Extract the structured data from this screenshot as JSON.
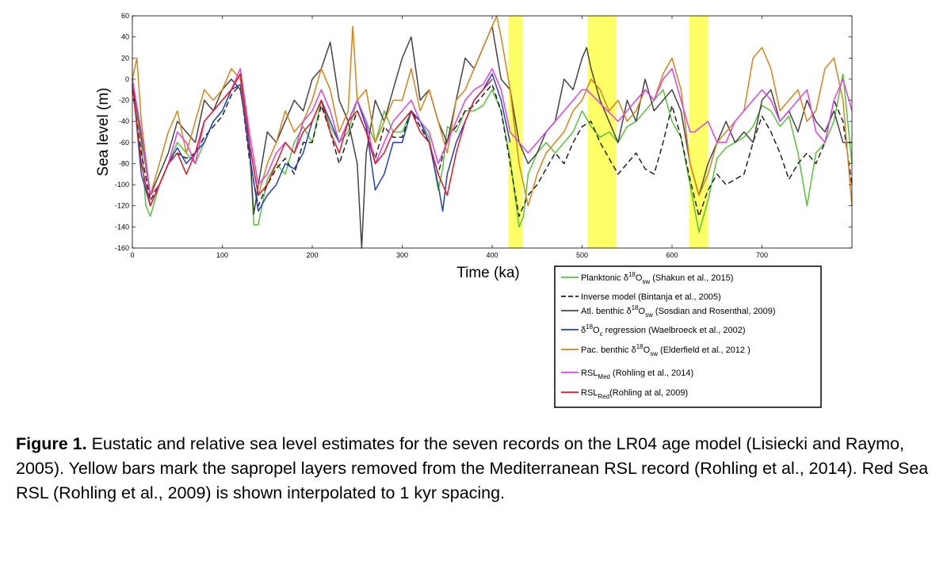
{
  "chart_data": {
    "type": "line",
    "xlabel": "Time (ka)",
    "ylabel": "Sea level (m)",
    "xlim": [
      0,
      800
    ],
    "ylim": [
      -160,
      60
    ],
    "x_ticks": [
      0,
      100,
      200,
      300,
      400,
      500,
      600,
      700
    ],
    "y_ticks": [
      60,
      40,
      20,
      0,
      -20,
      -40,
      -60,
      -80,
      -100,
      -120,
      -140,
      -160
    ],
    "grid": false,
    "legend_position": "below-right",
    "shaded_regions": [
      {
        "x0": 418,
        "x1": 434,
        "color": "#ffff66"
      },
      {
        "x0": 506,
        "x1": 538,
        "color": "#ffff66"
      },
      {
        "x0": 619,
        "x1": 640,
        "color": "#ffff66"
      }
    ],
    "series": [
      {
        "legend_main": "Planktonic δ18Osw",
        "legend_parts": [
          [
            "Planktonic ",
            ""
          ],
          [
            "δ",
            ""
          ],
          [
            "18",
            "sup"
          ],
          [
            "O",
            ""
          ],
          [
            "sw",
            "sub"
          ],
          [
            " (Shakun et al., 2015)",
            ""
          ]
        ],
        "color": "#55c43a",
        "dash": "",
        "x": [
          0,
          10,
          15,
          20,
          30,
          40,
          50,
          60,
          70,
          80,
          90,
          100,
          110,
          120,
          125,
          130,
          135,
          140,
          150,
          160,
          170,
          180,
          190,
          200,
          210,
          220,
          230,
          240,
          250,
          260,
          270,
          280,
          290,
          300,
          310,
          320,
          330,
          340,
          345,
          350,
          360,
          370,
          380,
          390,
          400,
          410,
          420,
          430,
          435,
          440,
          450,
          460,
          470,
          480,
          490,
          500,
          510,
          520,
          530,
          540,
          550,
          560,
          570,
          580,
          590,
          600,
          610,
          620,
          630,
          640,
          650,
          660,
          670,
          680,
          690,
          700,
          710,
          720,
          730,
          740,
          750,
          760,
          770,
          780,
          790,
          800
        ],
        "y": [
          -5,
          -60,
          -120,
          -130,
          -100,
          -80,
          -60,
          -70,
          -80,
          -60,
          -40,
          -30,
          -10,
          -5,
          -20,
          -60,
          -138,
          -138,
          -95,
          -80,
          -90,
          -60,
          -45,
          -60,
          -20,
          -45,
          -60,
          -50,
          -20,
          -40,
          -60,
          -30,
          -50,
          -50,
          -30,
          -40,
          -55,
          -105,
          -85,
          -45,
          -50,
          -30,
          -30,
          -25,
          -10,
          -30,
          -75,
          -140,
          -130,
          -90,
          -70,
          -60,
          -70,
          -60,
          -50,
          -30,
          -45,
          -55,
          -50,
          -60,
          -45,
          -40,
          -30,
          -20,
          -10,
          -40,
          -55,
          -100,
          -145,
          -115,
          -75,
          -65,
          -60,
          -55,
          -45,
          -25,
          -30,
          -45,
          -35,
          -70,
          -120,
          -70,
          -60,
          -40,
          5,
          -80
        ]
      },
      {
        "legend_main": "Inverse model (Bintanja et al., 2005)",
        "legend_parts": [
          [
            "Inverse model (Bintanja et al., 2005)",
            ""
          ]
        ],
        "color": "#222222",
        "dash": "7,4",
        "x": [
          0,
          10,
          20,
          30,
          40,
          50,
          60,
          70,
          80,
          90,
          100,
          110,
          120,
          130,
          140,
          150,
          160,
          170,
          180,
          190,
          200,
          210,
          220,
          230,
          240,
          250,
          260,
          270,
          280,
          290,
          300,
          310,
          320,
          330,
          340,
          350,
          360,
          370,
          380,
          390,
          400,
          410,
          420,
          430,
          440,
          450,
          460,
          470,
          480,
          490,
          500,
          510,
          520,
          530,
          540,
          550,
          560,
          570,
          580,
          590,
          600,
          610,
          620,
          630,
          640,
          650,
          660,
          670,
          680,
          690,
          700,
          710,
          720,
          730,
          740,
          750,
          760,
          770,
          780,
          790,
          800
        ],
        "y": [
          -10,
          -70,
          -115,
          -100,
          -80,
          -70,
          -75,
          -70,
          -55,
          -45,
          -35,
          -15,
          -5,
          -75,
          -120,
          -100,
          -85,
          -75,
          -90,
          -60,
          -60,
          -25,
          -50,
          -80,
          -55,
          -30,
          -50,
          -75,
          -45,
          -55,
          -55,
          -30,
          -45,
          -60,
          -90,
          -55,
          -45,
          -30,
          -25,
          -15,
          -5,
          -30,
          -80,
          -130,
          -110,
          -100,
          -85,
          -70,
          -80,
          -60,
          -45,
          -40,
          -60,
          -75,
          -90,
          -80,
          -70,
          -85,
          -90,
          -60,
          -25,
          -55,
          -95,
          -130,
          -105,
          -90,
          -100,
          -95,
          -90,
          -60,
          -35,
          -50,
          -70,
          -95,
          -80,
          -70,
          -80,
          -60,
          -20,
          -40,
          -100
        ]
      },
      {
        "legend_main": "Atl. benthic δ18Osw (Sosdian and Rosenthal, 2009)",
        "legend_parts": [
          [
            "Atl. benthic ",
            ""
          ],
          [
            "δ",
            ""
          ],
          [
            "18",
            "sup"
          ],
          [
            "O",
            ""
          ],
          [
            "sw",
            "sub"
          ],
          [
            " (Sosdian and Rosenthal, 2009)",
            ""
          ]
        ],
        "color": "#444444",
        "dash": "",
        "x": [
          0,
          10,
          20,
          30,
          40,
          50,
          60,
          70,
          80,
          90,
          100,
          110,
          120,
          130,
          135,
          140,
          150,
          160,
          170,
          180,
          190,
          200,
          210,
          220,
          230,
          240,
          250,
          255,
          260,
          270,
          280,
          290,
          300,
          310,
          320,
          330,
          340,
          350,
          360,
          370,
          380,
          390,
          400,
          410,
          420,
          430,
          440,
          450,
          460,
          470,
          480,
          490,
          500,
          505,
          510,
          520,
          530,
          540,
          550,
          560,
          570,
          580,
          590,
          600,
          610,
          620,
          630,
          640,
          650,
          660,
          670,
          680,
          690,
          700,
          710,
          720,
          730,
          740,
          750,
          760,
          770,
          780,
          790,
          800
        ],
        "y": [
          0,
          -55,
          -110,
          -90,
          -70,
          -40,
          -50,
          -60,
          -20,
          -30,
          -10,
          0,
          -10,
          -60,
          -128,
          -100,
          -50,
          -60,
          -40,
          -20,
          -30,
          0,
          10,
          35,
          -20,
          -40,
          -80,
          -160,
          -70,
          -20,
          -40,
          -10,
          20,
          40,
          -20,
          -10,
          -40,
          -60,
          -20,
          20,
          10,
          30,
          50,
          0,
          -10,
          -60,
          -80,
          -70,
          -50,
          -40,
          0,
          -10,
          20,
          30,
          10,
          -20,
          -40,
          -60,
          -20,
          -40,
          0,
          -30,
          -20,
          -10,
          -30,
          -80,
          -110,
          -80,
          -60,
          -40,
          -60,
          -50,
          -60,
          -20,
          -10,
          -40,
          -30,
          -50,
          -20,
          -40,
          -50,
          -30,
          -60,
          -60
        ]
      },
      {
        "legend_main": "δ18Oc regression (Waelbroeck et al., 2002)",
        "legend_parts": [
          [
            "δ",
            ""
          ],
          [
            "18",
            "sup"
          ],
          [
            "O",
            ""
          ],
          [
            "c",
            "sub"
          ],
          [
            " regression (Waelbroeck et al., 2002)",
            ""
          ]
        ],
        "color": "#1f3fc8",
        "dash": "",
        "x": [
          0,
          10,
          20,
          30,
          40,
          50,
          60,
          70,
          80,
          90,
          100,
          110,
          120,
          130,
          140,
          150,
          160,
          170,
          180,
          190,
          200,
          210,
          220,
          230,
          240,
          250,
          260,
          270,
          280,
          290,
          300,
          310,
          320,
          330,
          340,
          345,
          350,
          360,
          370,
          380,
          390,
          400,
          410,
          420
        ],
        "y": [
          0,
          -90,
          -120,
          -100,
          -80,
          -65,
          -80,
          -70,
          -60,
          -40,
          -30,
          -10,
          -5,
          -70,
          -125,
          -110,
          -100,
          -80,
          -85,
          -70,
          -40,
          -20,
          -40,
          -60,
          -40,
          -20,
          -45,
          -105,
          -90,
          -60,
          -60,
          -30,
          -40,
          -60,
          -100,
          -125,
          -90,
          -60,
          -40,
          -20,
          -10,
          5,
          -20,
          -60
        ]
      },
      {
        "legend_main": "Pac. benthic δ18Osw (Elderfield et al., 2012 )",
        "legend_parts": [
          [
            "Pac. benthic ",
            ""
          ],
          [
            "δ",
            ""
          ],
          [
            "18",
            "sup"
          ],
          [
            "O",
            ""
          ],
          [
            "sw",
            "sub"
          ],
          [
            " (Elderfield et al., 2012 )",
            ""
          ]
        ],
        "color": "#d98314",
        "dash": "",
        "x": [
          0,
          5,
          10,
          20,
          30,
          40,
          50,
          60,
          70,
          80,
          90,
          100,
          110,
          120,
          130,
          140,
          150,
          160,
          170,
          180,
          190,
          200,
          210,
          220,
          230,
          240,
          245,
          250,
          260,
          270,
          280,
          290,
          300,
          310,
          320,
          330,
          340,
          350,
          360,
          370,
          380,
          390,
          400,
          405,
          410,
          420,
          430,
          440,
          450,
          460,
          470,
          480,
          490,
          500,
          510,
          520,
          530,
          540,
          550,
          560,
          570,
          580,
          590,
          600,
          610,
          620,
          630,
          640,
          650,
          660,
          670,
          680,
          690,
          700,
          710,
          720,
          730,
          740,
          750,
          760,
          770,
          780,
          790,
          800
        ],
        "y": [
          0,
          20,
          -40,
          -110,
          -80,
          -50,
          -30,
          -70,
          -40,
          -10,
          -20,
          -10,
          10,
          0,
          -60,
          -110,
          -80,
          -60,
          -30,
          -50,
          -40,
          -20,
          10,
          -10,
          -50,
          -30,
          50,
          -20,
          -10,
          -60,
          -40,
          -20,
          -20,
          10,
          -30,
          -10,
          -40,
          -70,
          -20,
          -10,
          10,
          30,
          50,
          60,
          40,
          -10,
          -80,
          -120,
          -90,
          -70,
          -60,
          -50,
          -30,
          -20,
          0,
          -10,
          -30,
          -20,
          -40,
          -30,
          -10,
          -20,
          5,
          20,
          -10,
          -80,
          -110,
          -90,
          -60,
          -50,
          -40,
          -30,
          20,
          30,
          10,
          -30,
          -20,
          -10,
          -40,
          -30,
          10,
          20,
          -20,
          -120
        ]
      },
      {
        "legend_main": "RSLMed (Rohling et al., 2014)",
        "legend_parts": [
          [
            "RSL",
            ""
          ],
          [
            "Med",
            "sub"
          ],
          [
            " (Rohling et al., 2014)",
            ""
          ]
        ],
        "color": "#e040e8",
        "dash": "",
        "x": [
          0,
          10,
          20,
          30,
          40,
          50,
          60,
          70,
          80,
          90,
          100,
          110,
          120,
          130,
          140,
          150,
          160,
          170,
          180,
          190,
          200,
          210,
          220,
          230,
          240,
          250,
          260,
          270,
          280,
          290,
          300,
          310,
          320,
          330,
          340,
          350,
          360,
          370,
          380,
          390,
          400,
          410,
          420,
          430,
          440,
          450,
          460,
          470,
          480,
          490,
          500,
          505,
          540,
          550,
          560,
          570,
          580,
          590,
          600,
          610,
          620,
          625,
          640,
          650,
          660,
          670,
          680,
          690,
          700,
          710,
          720,
          730,
          740,
          750,
          760,
          770,
          780,
          790,
          800
        ],
        "y": [
          0,
          -50,
          -110,
          -100,
          -80,
          -50,
          -60,
          -80,
          -40,
          -30,
          -20,
          -10,
          10,
          -50,
          -100,
          -90,
          -70,
          -60,
          -70,
          -40,
          -30,
          -10,
          -30,
          -60,
          -40,
          -20,
          -40,
          -80,
          -60,
          -40,
          -30,
          -20,
          -40,
          -50,
          -80,
          -60,
          -40,
          -20,
          -10,
          -5,
          10,
          -10,
          -50,
          -60,
          -70,
          -60,
          -50,
          -40,
          -30,
          -20,
          -10,
          -10,
          -40,
          -30,
          -20,
          -10,
          -20,
          0,
          10,
          -20,
          -50,
          -50,
          -40,
          -60,
          -60,
          -40,
          -30,
          -20,
          -10,
          -20,
          -40,
          -30,
          -20,
          -10,
          -50,
          -60,
          -20,
          0,
          -30
        ]
      },
      {
        "legend_main": "RSLRed(Rohling at al, 2009)",
        "legend_parts": [
          [
            "RSL",
            ""
          ],
          [
            "Red",
            "sub"
          ],
          [
            "(Rohling at al, 2009)",
            ""
          ]
        ],
        "color": "#e8141e",
        "dash": "",
        "x": [
          0,
          10,
          20,
          30,
          40,
          50,
          60,
          70,
          80,
          90,
          100,
          110,
          120,
          130,
          140,
          150,
          160,
          170,
          180,
          190,
          200,
          210,
          220,
          230,
          240,
          250,
          260,
          270,
          280,
          290,
          300,
          310,
          320,
          330,
          340,
          350,
          360,
          370,
          380,
          390,
          400
        ],
        "y": [
          -5,
          -80,
          -120,
          -100,
          -80,
          -70,
          -90,
          -70,
          -40,
          -30,
          -20,
          -10,
          5,
          -60,
          -110,
          -100,
          -80,
          -60,
          -70,
          -50,
          -40,
          -20,
          -50,
          -70,
          -40,
          -30,
          -50,
          -80,
          -70,
          -50,
          -40,
          -30,
          -50,
          -60,
          -90,
          -110,
          -70,
          -40,
          -20,
          -10,
          0
        ]
      }
    ]
  },
  "caption": {
    "label": "Figure 1.",
    "text": " Eustatic and relative sea level estimates for the seven records on the LR04 age model (Lisiecki and Raymo, 2005). Yellow bars mark the sapropel layers removed from the Mediterranean RSL record (Rohling et al., 2014). Red Sea RSL (Rohling et al., 2009) is shown interpolated to 1 kyr spacing."
  }
}
